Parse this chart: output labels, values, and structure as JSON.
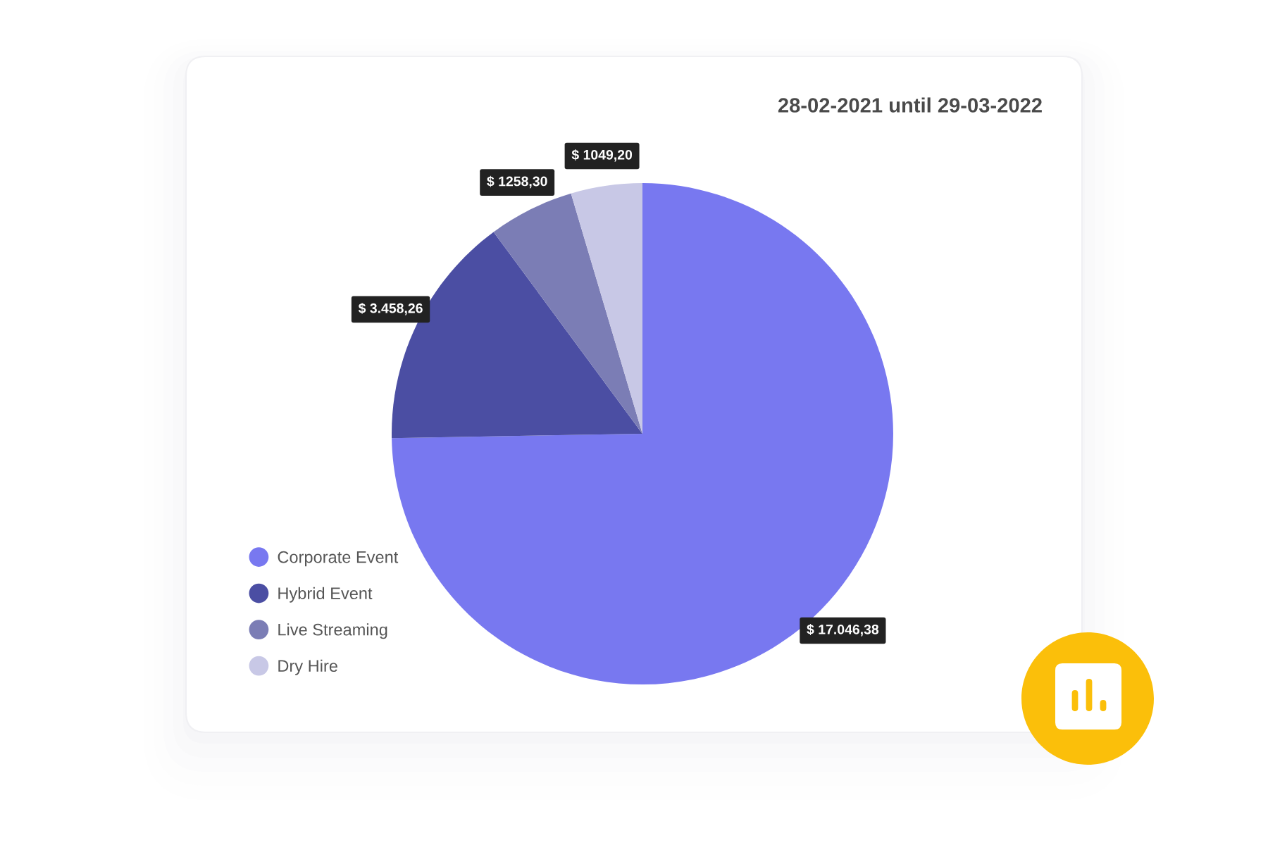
{
  "chart_data": {
    "type": "pie",
    "title": "28-02-2021 until 29-03-2022",
    "categories": [
      "Corporate Event",
      "Hybrid Event",
      "Live Streaming",
      "Dry Hire"
    ],
    "values": [
      17046.38,
      3458.26,
      1258.3,
      1049.2
    ],
    "colors": [
      "#7878f0",
      "#4b4ea3",
      "#7b7db5",
      "#c8c8e6"
    ],
    "value_labels": [
      "$ 17.046,38",
      "$ 3.458,26",
      "$ 1258,30",
      "$ 1049,20"
    ],
    "legend": "bottom left"
  }
}
